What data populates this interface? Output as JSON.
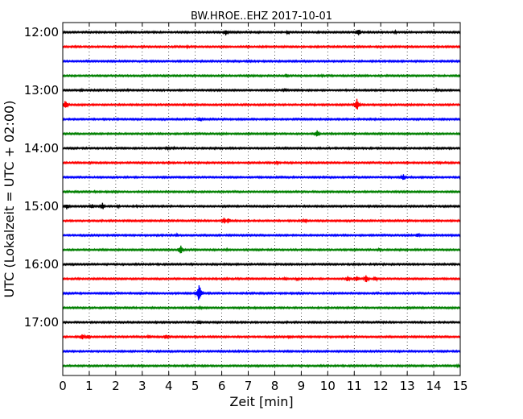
{
  "chart_data": {
    "type": "line",
    "title": "BW.HROE..EHZ 2017-10-01",
    "xlabel": "Zeit  [min]",
    "ylabel": "UTC (Lokalzeit = UTC + 02:00)",
    "xlim": [
      0,
      15
    ],
    "x_ticks": [
      "0",
      "1",
      "2",
      "3",
      "4",
      "5",
      "6",
      "7",
      "8",
      "9",
      "10",
      "11",
      "12",
      "13",
      "14",
      "15"
    ],
    "y_tick_labels": [
      "12:00",
      "13:00",
      "14:00",
      "15:00",
      "16:00",
      "17:00"
    ],
    "grid": "vertical dotted",
    "trace_colors": [
      "#000000",
      "#ff0000",
      "#0000ff",
      "#008000"
    ],
    "traces": [
      {
        "start": "12:00",
        "events": [
          [
            6.15,
            0.55
          ],
          [
            8.5,
            0.35
          ],
          [
            11.15,
            0.6
          ],
          [
            12.55,
            0.25
          ]
        ]
      },
      {
        "start": "12:15",
        "events": [
          [
            4.7,
            0.2
          ]
        ]
      },
      {
        "start": "12:30",
        "events": [
          [
            7.1,
            0.2
          ]
        ]
      },
      {
        "start": "12:45",
        "events": [
          [
            8.45,
            0.35
          ],
          [
            9.8,
            0.2
          ]
        ]
      },
      {
        "start": "13:00",
        "events": [
          [
            0.7,
            0.3
          ],
          [
            8.4,
            0.3
          ],
          [
            14.1,
            0.2
          ]
        ]
      },
      {
        "start": "13:15",
        "events": [
          [
            0.1,
            0.8
          ],
          [
            11.1,
            1.0
          ]
        ]
      },
      {
        "start": "13:30",
        "events": [
          [
            5.2,
            0.4
          ],
          [
            3.8,
            0.15
          ]
        ]
      },
      {
        "start": "13:45",
        "events": [
          [
            9.6,
            0.6
          ]
        ]
      },
      {
        "start": "14:00",
        "events": [
          [
            3.95,
            0.3
          ],
          [
            4.2,
            0.2
          ]
        ]
      },
      {
        "start": "14:15",
        "events": [
          [
            8.1,
            0.25
          ]
        ]
      },
      {
        "start": "14:30",
        "events": [
          [
            12.85,
            0.55
          ]
        ]
      },
      {
        "start": "14:45",
        "events": [
          [
            1.2,
            0.15
          ]
        ]
      },
      {
        "start": "15:00",
        "events": [
          [
            0.15,
            0.5
          ],
          [
            1.1,
            0.45
          ],
          [
            1.5,
            0.6
          ],
          [
            2.1,
            0.3
          ],
          [
            2.8,
            0.2
          ]
        ]
      },
      {
        "start": "15:15",
        "events": [
          [
            6.1,
            0.6
          ],
          [
            6.25,
            0.5
          ],
          [
            9.15,
            0.4
          ]
        ]
      },
      {
        "start": "15:30",
        "events": [
          [
            4.3,
            0.25
          ],
          [
            13.4,
            0.45
          ]
        ]
      },
      {
        "start": "15:45",
        "events": [
          [
            4.45,
            0.8
          ],
          [
            6.2,
            0.2
          ],
          [
            11.95,
            0.3
          ]
        ]
      },
      {
        "start": "16:00",
        "events": [
          [
            1.2,
            0.15
          ]
        ]
      },
      {
        "start": "16:15",
        "events": [
          [
            8.4,
            0.3
          ],
          [
            8.85,
            0.3
          ],
          [
            10.75,
            0.45
          ],
          [
            11.1,
            0.5
          ],
          [
            11.45,
            0.7
          ],
          [
            11.8,
            0.4
          ]
        ]
      },
      {
        "start": "16:30",
        "events": [
          [
            5.15,
            1.6
          ]
        ]
      },
      {
        "start": "16:45",
        "events": [
          [
            5.2,
            0.3
          ]
        ]
      },
      {
        "start": "17:00",
        "events": [
          [
            5.15,
            0.3
          ]
        ]
      },
      {
        "start": "17:15",
        "events": [
          [
            0.75,
            0.55
          ],
          [
            0.95,
            0.4
          ],
          [
            3.25,
            0.3
          ],
          [
            3.9,
            0.45
          ],
          [
            8.55,
            0.3
          ]
        ]
      },
      {
        "start": "17:30",
        "events": [
          [
            6.5,
            0.15
          ]
        ]
      },
      {
        "start": "17:45",
        "events": [
          [
            6.9,
            0.15
          ],
          [
            14.9,
            0.25
          ]
        ]
      }
    ]
  }
}
